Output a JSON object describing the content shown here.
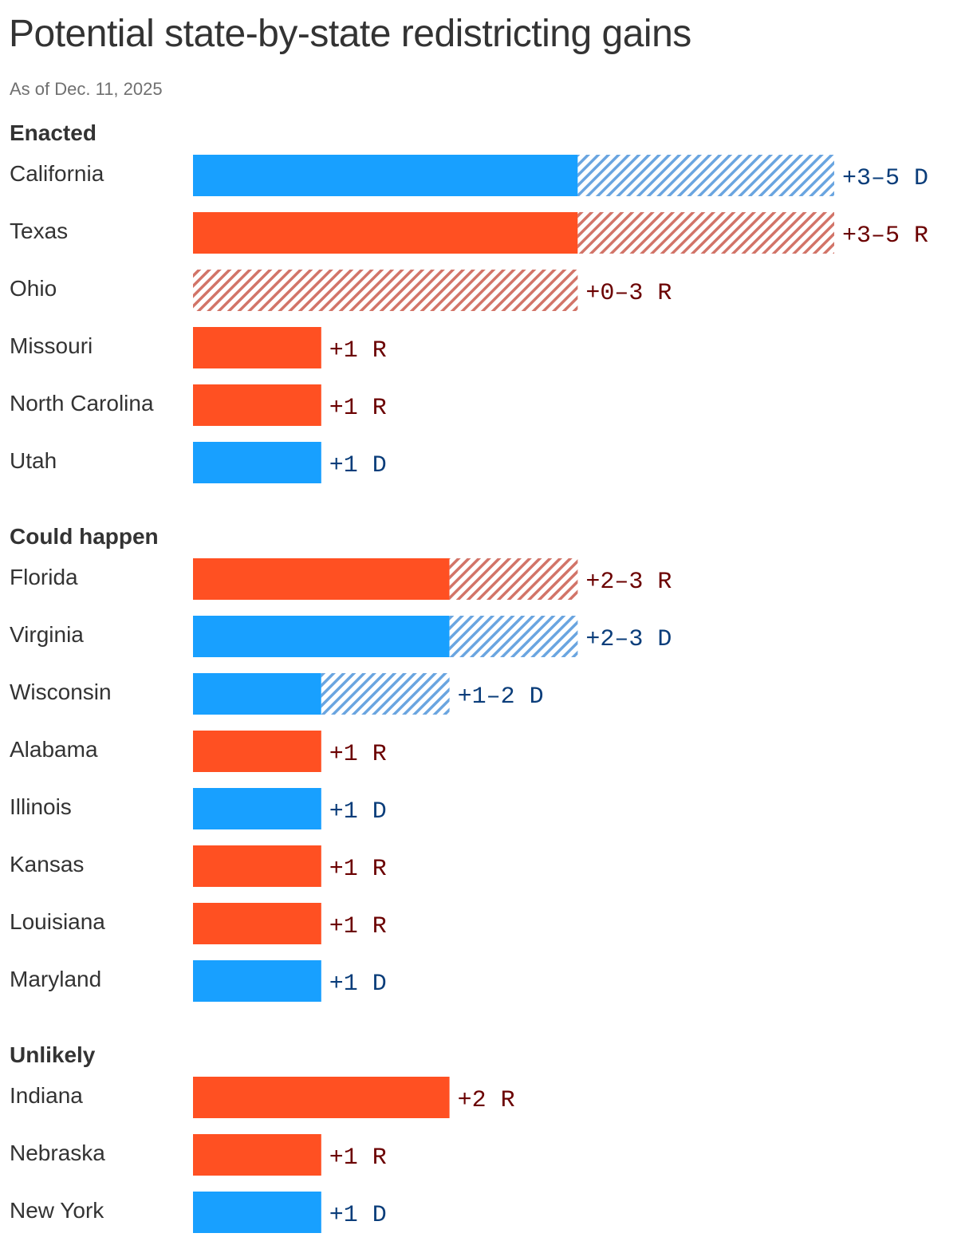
{
  "title": "Potential state-by-state redistricting gains",
  "subtitle": "As of Dec. 11, 2025",
  "colors": {
    "D": "#18a0ff",
    "D_hatch": "#6aa5e0",
    "D_text": "#0a3d7a",
    "R": "#ff5022",
    "R_hatch": "#d27468",
    "R_text": "#6b0000"
  },
  "chart_data": {
    "type": "bar",
    "orientation": "horizontal",
    "title": "Potential state-by-state redistricting gains",
    "subtitle": "As of Dec. 11, 2025",
    "xlim": [
      0,
      5
    ],
    "encoding": {
      "solid": "minimum gain",
      "hatched": "additional possible gain up to maximum"
    },
    "groups": [
      {
        "name": "Enacted",
        "rows": [
          {
            "state": "California",
            "party": "D",
            "min": 3,
            "max": 5,
            "label": "+3–5 D"
          },
          {
            "state": "Texas",
            "party": "R",
            "min": 3,
            "max": 5,
            "label": "+3–5 R"
          },
          {
            "state": "Ohio",
            "party": "R",
            "min": 0,
            "max": 3,
            "label": "+0–3 R"
          },
          {
            "state": "Missouri",
            "party": "R",
            "min": 1,
            "max": 1,
            "label": "+1 R"
          },
          {
            "state": "North Carolina",
            "party": "R",
            "min": 1,
            "max": 1,
            "label": "+1 R"
          },
          {
            "state": "Utah",
            "party": "D",
            "min": 1,
            "max": 1,
            "label": "+1 D"
          }
        ]
      },
      {
        "name": "Could happen",
        "rows": [
          {
            "state": "Florida",
            "party": "R",
            "min": 2,
            "max": 3,
            "label": "+2–3 R"
          },
          {
            "state": "Virginia",
            "party": "D",
            "min": 2,
            "max": 3,
            "label": "+2–3 D"
          },
          {
            "state": "Wisconsin",
            "party": "D",
            "min": 1,
            "max": 2,
            "label": "+1–2 D"
          },
          {
            "state": "Alabama",
            "party": "R",
            "min": 1,
            "max": 1,
            "label": "+1 R"
          },
          {
            "state": "Illinois",
            "party": "D",
            "min": 1,
            "max": 1,
            "label": "+1 D"
          },
          {
            "state": "Kansas",
            "party": "R",
            "min": 1,
            "max": 1,
            "label": "+1 R"
          },
          {
            "state": "Louisiana",
            "party": "R",
            "min": 1,
            "max": 1,
            "label": "+1 R"
          },
          {
            "state": "Maryland",
            "party": "D",
            "min": 1,
            "max": 1,
            "label": "+1 D"
          }
        ]
      },
      {
        "name": "Unlikely",
        "rows": [
          {
            "state": "Indiana",
            "party": "R",
            "min": 2,
            "max": 2,
            "label": "+2 R"
          },
          {
            "state": "Nebraska",
            "party": "R",
            "min": 1,
            "max": 1,
            "label": "+1 R"
          },
          {
            "state": "New York",
            "party": "D",
            "min": 1,
            "max": 1,
            "label": "+1 D"
          }
        ]
      }
    ]
  }
}
